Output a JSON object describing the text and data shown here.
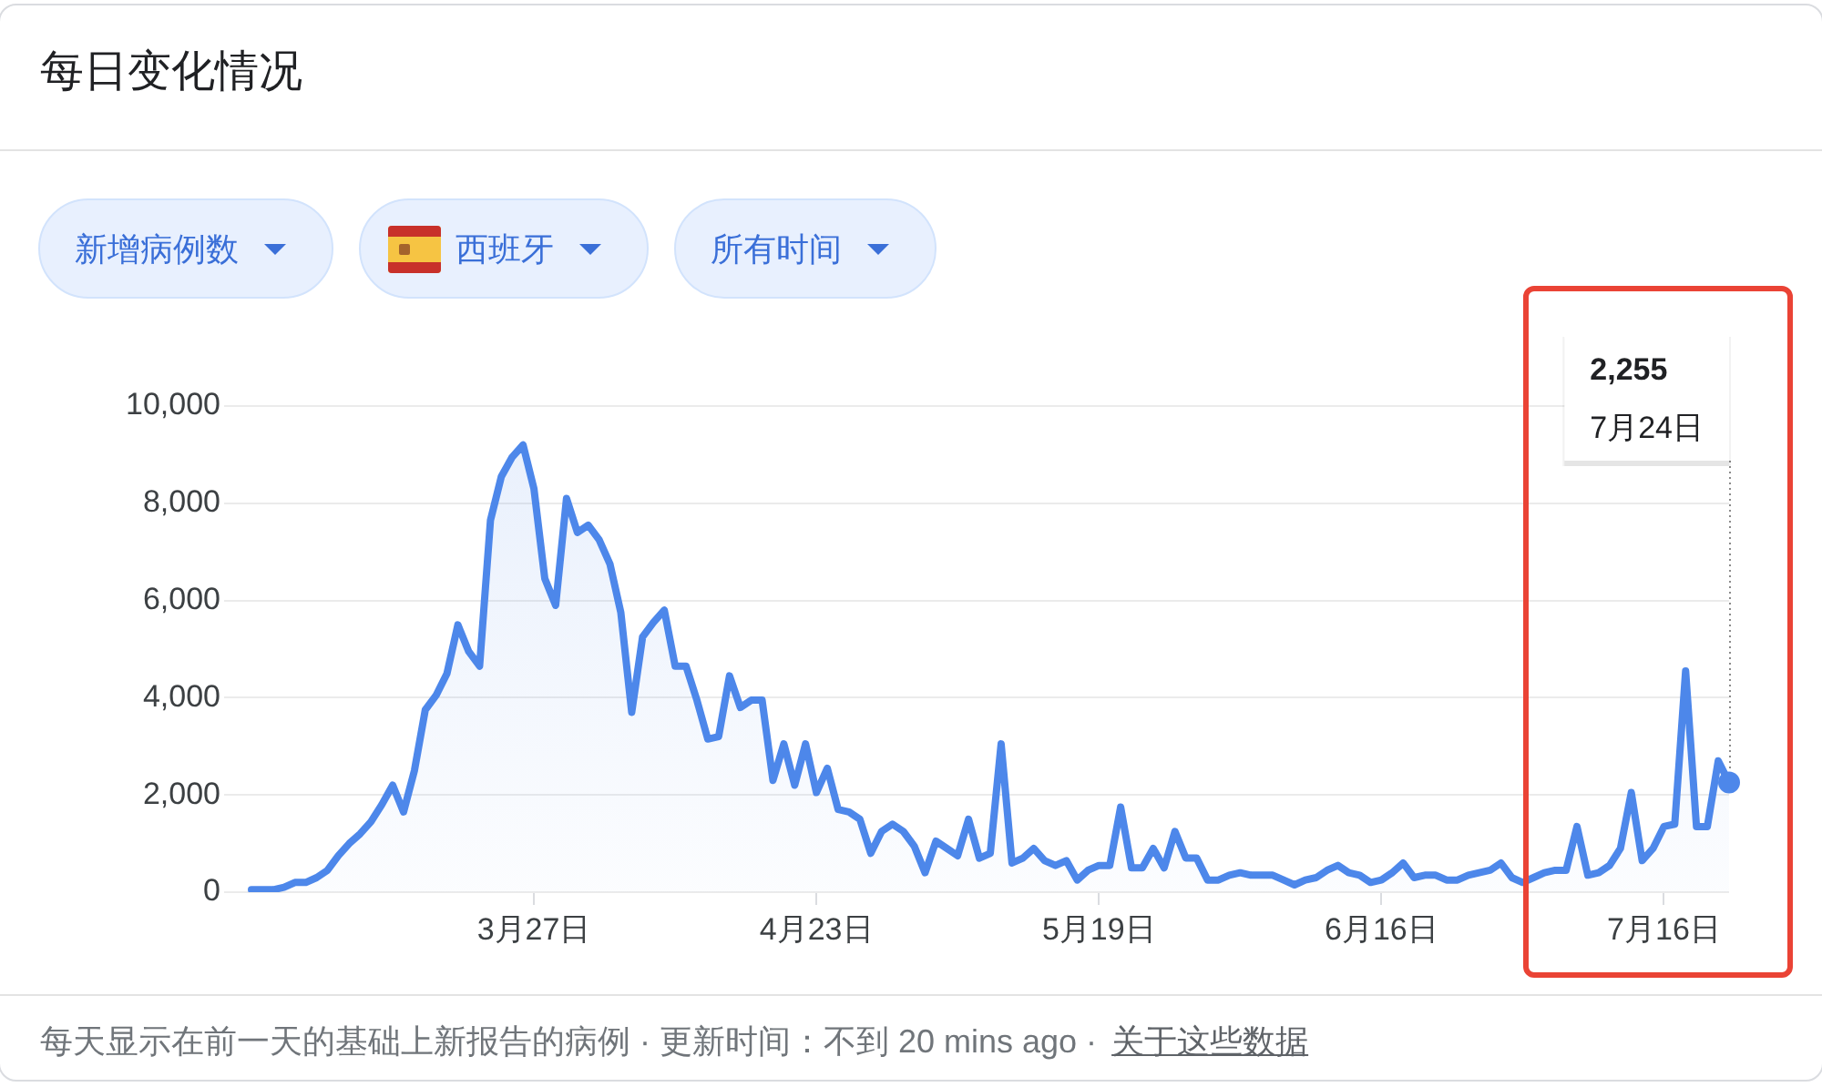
{
  "chart_data": {
    "type": "area",
    "title": "每日变化情况",
    "annotations": [
      "新增病例数",
      "西班牙",
      "所有时间",
      "每天显示在前一天的基础上新报告的病例 · 更新时间：不到 20 mins ago ·",
      "关于这些数据",
      "2,255",
      "7月24日"
    ],
    "categories": [
      null,
      null,
      null,
      null,
      null,
      null,
      null,
      null,
      null,
      null,
      null,
      null,
      null,
      null,
      null,
      null,
      null,
      null,
      null,
      null,
      null,
      null,
      null,
      null,
      null,
      null,
      "3月27日",
      null,
      null,
      null,
      null,
      null,
      null,
      null,
      null,
      null,
      null,
      null,
      null,
      null,
      null,
      null,
      null,
      null,
      null,
      null,
      null,
      null,
      null,
      null,
      null,
      null,
      "4月23日",
      null,
      null,
      null,
      null,
      null,
      null,
      null,
      null,
      null,
      null,
      null,
      null,
      null,
      null,
      null,
      null,
      null,
      null,
      null,
      null,
      null,
      null,
      null,
      null,
      null,
      "5月19日",
      null,
      null,
      null,
      null,
      null,
      null,
      null,
      null,
      null,
      null,
      null,
      null,
      null,
      null,
      null,
      null,
      null,
      null,
      null,
      null,
      null,
      null,
      null,
      null,
      null,
      "6月16日",
      null,
      null,
      null,
      null,
      null,
      null,
      null,
      null,
      null,
      null,
      null,
      null,
      null,
      null,
      null,
      null,
      null,
      null,
      null,
      null,
      null,
      null,
      null,
      null,
      null,
      "7月16日",
      null,
      null,
      null,
      null,
      null,
      null
    ],
    "values": [
      50,
      50,
      50,
      100,
      200,
      200,
      300,
      450,
      750,
      1000,
      1200,
      1450,
      1800,
      2200,
      1650,
      2500,
      3750,
      4050,
      4500,
      5500,
      4950,
      4650,
      7650,
      8550,
      8950,
      9200,
      8300,
      6450,
      5900,
      8100,
      7400,
      7550,
      7250,
      6750,
      5750,
      3700,
      5250,
      5550,
      5800,
      4650,
      4650,
      3950,
      3150,
      3200,
      4450,
      3800,
      3950,
      3950,
      2300,
      3050,
      2200,
      3050,
      2050,
      2550,
      1700,
      1650,
      1500,
      800,
      1250,
      1400,
      1250,
      950,
      400,
      1050,
      900,
      750,
      1500,
      700,
      800,
      3050,
      600,
      700,
      900,
      650,
      550,
      650,
      250,
      450,
      550,
      550,
      1750,
      500,
      500,
      900,
      500,
      1250,
      700,
      700,
      250,
      250,
      350,
      400,
      350,
      350,
      350,
      250,
      150,
      250,
      300,
      450,
      550,
      400,
      350,
      200,
      250,
      400,
      600,
      300,
      350,
      350,
      250,
      250,
      350,
      400,
      450,
      600,
      300,
      200,
      300,
      400,
      450,
      450,
      1350,
      350,
      400,
      550,
      900,
      2050,
      650,
      900,
      1350,
      1400,
      4550,
      1350,
      1350,
      2700,
      2255
    ],
    "color": "#4d87ea",
    "ylim": [
      0,
      10000
    ],
    "yticks": [
      0,
      {
        "value": 2000,
        "label": "2,000"
      },
      {
        "value": 4000,
        "label": "4,000"
      },
      {
        "value": 6000,
        "label": "6,000"
      },
      {
        "value": 8000,
        "label": "8,000"
      },
      {
        "value": 10000,
        "label": "10,000"
      }
    ],
    "grid": "y",
    "marker": "none"
  }
}
